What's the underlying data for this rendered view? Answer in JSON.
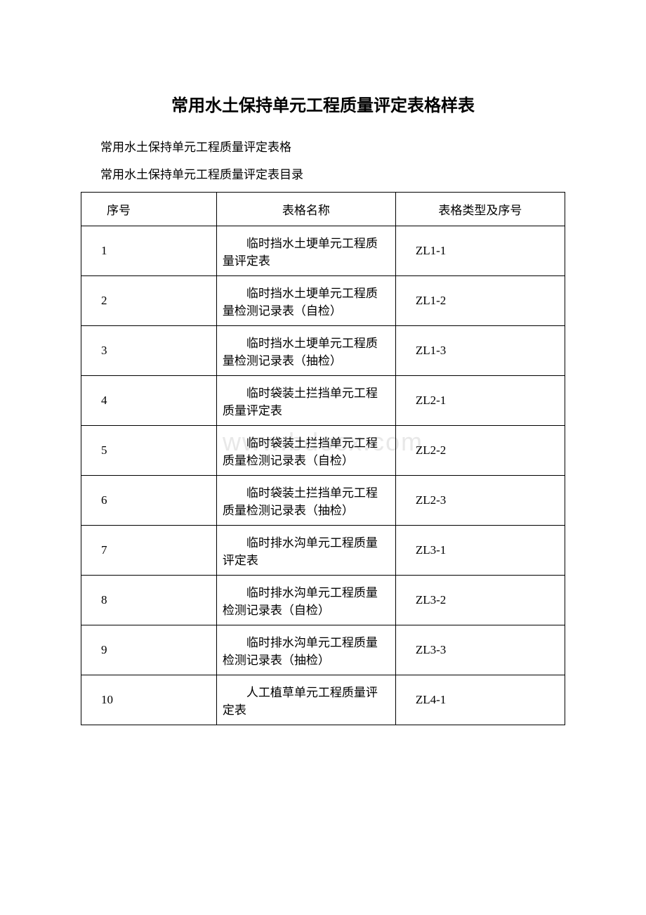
{
  "title": "常用水土保持单元工程质量评定表格样表",
  "subtitle1": "常用水土保持单元工程质量评定表格",
  "subtitle2": "常用水土保持单元工程质量评定表目录",
  "watermark": "www.bdocx.com",
  "table": {
    "headers": {
      "seq": "序号",
      "name": "表格名称",
      "type": "表格类型及序号"
    },
    "rows": [
      {
        "seq": "1",
        "name": "临时挡水土埂单元工程质量评定表",
        "type": "ZL1-1"
      },
      {
        "seq": "2",
        "name": "临时挡水土埂单元工程质量检测记录表（自检）",
        "type": "ZL1-2"
      },
      {
        "seq": "3",
        "name": "临时挡水土埂单元工程质量检测记录表（抽检）",
        "type": "ZL1-3"
      },
      {
        "seq": "4",
        "name": "临时袋装土拦挡单元工程质量评定表",
        "type": "ZL2-1"
      },
      {
        "seq": "5",
        "name": "临时袋装土拦挡单元工程质量检测记录表（自检）",
        "type": "ZL2-2"
      },
      {
        "seq": "6",
        "name": "临时袋装土拦挡单元工程质量检测记录表（抽检）",
        "type": "ZL2-3"
      },
      {
        "seq": "7",
        "name": "临时排水沟单元工程质量评定表",
        "type": "ZL3-1"
      },
      {
        "seq": "8",
        "name": "临时排水沟单元工程质量检测记录表（自检）",
        "type": "ZL3-2"
      },
      {
        "seq": "9",
        "name": "临时排水沟单元工程质量检测记录表（抽检）",
        "type": "ZL3-3"
      },
      {
        "seq": "10",
        "name": "人工植草单元工程质量评定表",
        "type": "ZL4-1"
      }
    ]
  }
}
